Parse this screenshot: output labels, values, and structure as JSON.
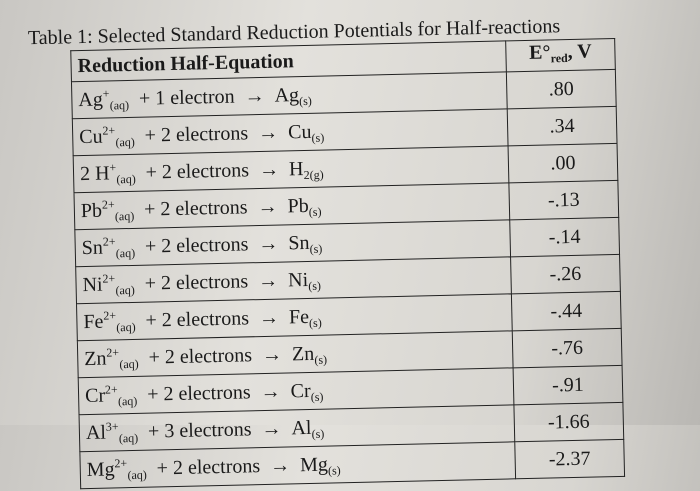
{
  "title": "Table 1: Selected Standard Reduction Potentials for Half-reactions",
  "table": {
    "headers": {
      "equation": "Reduction Half-Equation",
      "potential_symbol": "E°",
      "potential_sub": "red",
      "potential_unit": ", V"
    },
    "rows": [
      {
        "ion": "Ag",
        "charge": "+",
        "state": "(aq)",
        "electrons": "+ 1 electron",
        "arrow": "→",
        "product": "Ag",
        "product_state": "(s)",
        "potential": ".80"
      },
      {
        "ion": "Cu",
        "charge": "2+",
        "state": "(aq)",
        "electrons": "+ 2 electrons",
        "arrow": "→",
        "product": "Cu",
        "product_state": "(s)",
        "potential": ".34"
      },
      {
        "ion": "2 H",
        "charge": "+",
        "state": "(aq)",
        "electrons": "+ 2 electrons",
        "arrow": "→",
        "product": "H",
        "product_state": "2(g)",
        "potential": ".00"
      },
      {
        "ion": "Pb",
        "charge": "2+",
        "state": "(aq)",
        "electrons": "+ 2 electrons",
        "arrow": "→",
        "product": "Pb",
        "product_state": "(s)",
        "potential": "-.13"
      },
      {
        "ion": "Sn",
        "charge": "2+",
        "state": "(aq)",
        "electrons": "+ 2 electrons",
        "arrow": "→",
        "product": "Sn",
        "product_state": "(s)",
        "potential": "-.14"
      },
      {
        "ion": "Ni",
        "charge": "2+",
        "state": "(aq)",
        "electrons": "+ 2 electrons",
        "arrow": "→",
        "product": "Ni",
        "product_state": "(s)",
        "potential": "-.26"
      },
      {
        "ion": "Fe",
        "charge": "2+",
        "state": "(aq)",
        "electrons": "+ 2 electrons",
        "arrow": "→",
        "product": "Fe",
        "product_state": "(s)",
        "potential": "-.44"
      },
      {
        "ion": "Zn",
        "charge": "2+",
        "state": "(aq)",
        "electrons": "+ 2 electrons",
        "arrow": "→",
        "product": "Zn",
        "product_state": "(s)",
        "potential": "-.76"
      },
      {
        "ion": "Cr",
        "charge": "2+",
        "state": "(aq)",
        "electrons": "+ 2 electrons",
        "arrow": "→",
        "product": "Cr",
        "product_state": "(s)",
        "potential": "-.91"
      },
      {
        "ion": "Al",
        "charge": "3+",
        "state": "(aq)",
        "electrons": "+ 3 electrons",
        "arrow": "→",
        "product": "Al",
        "product_state": "(s)",
        "potential": "-1.66"
      },
      {
        "ion": "Mg",
        "charge": "2+",
        "state": "(aq)",
        "electrons": "+ 2 electrons",
        "arrow": "→",
        "product": "Mg",
        "product_state": "(s)",
        "potential": "-2.37"
      }
    ]
  }
}
